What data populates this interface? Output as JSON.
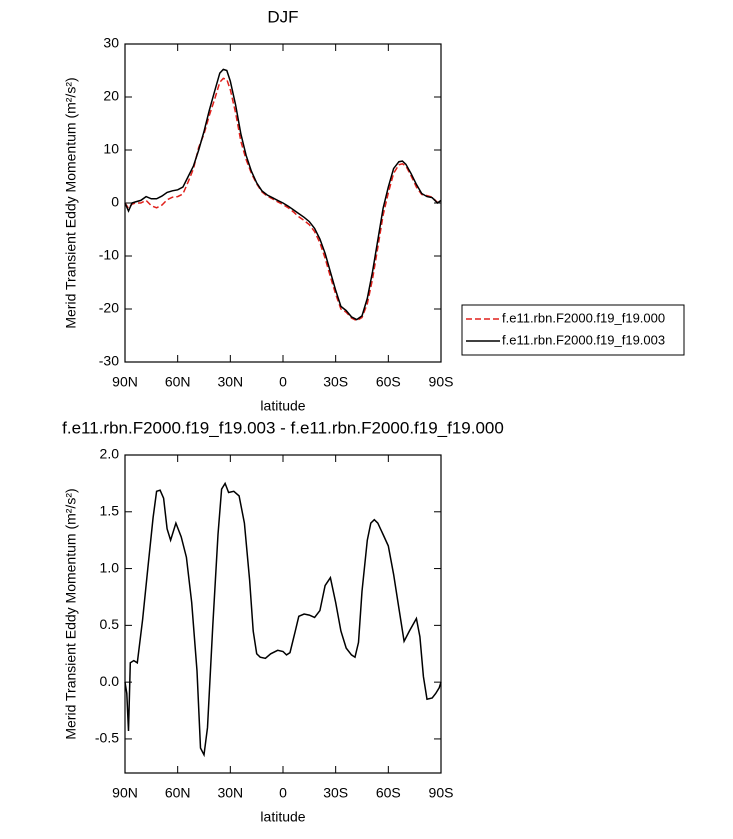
{
  "chart_data": [
    {
      "type": "line",
      "title": "DJF",
      "x_label": "latitude",
      "y_label": "Merid Transient Eddy Momentum (m²/s²)",
      "x": [
        90,
        88,
        86,
        84,
        81,
        78,
        75,
        72,
        69,
        66,
        63,
        60,
        57,
        54,
        51,
        48,
        45,
        42,
        39,
        36,
        34,
        32,
        30,
        27,
        24,
        21,
        18,
        15,
        12,
        9,
        6,
        3,
        0,
        -3,
        -6,
        -9,
        -12,
        -15,
        -18,
        -21,
        -24,
        -27,
        -30,
        -33,
        -36,
        -39,
        -42,
        -45,
        -48,
        -51,
        -54,
        -57,
        -60,
        -63,
        -66,
        -68,
        -70,
        -73,
        -76,
        -79,
        -82,
        -85,
        -88,
        -90
      ],
      "series": [
        {
          "name": "f.e11.rbn.F2000.f19_f19.000",
          "color": "#e0201b",
          "line_style": "dashed",
          "values": [
            0,
            -1,
            -0.2,
            0,
            0,
            0.5,
            -0.5,
            -0.9,
            -0.4,
            0.6,
            1.1,
            1.2,
            1.7,
            4,
            6.5,
            10.5,
            13,
            16.5,
            19.5,
            22.8,
            23.5,
            23.3,
            21.4,
            17,
            11.6,
            8.2,
            5.6,
            3.6,
            2.1,
            1.3,
            0.8,
            0.2,
            -0.3,
            -0.9,
            -1.7,
            -2.6,
            -3.3,
            -4.1,
            -5.4,
            -7.5,
            -10.4,
            -13.9,
            -17.2,
            -20,
            -20.6,
            -21.7,
            -22.2,
            -21.6,
            -19,
            -14.4,
            -8.4,
            -2.3,
            1.9,
            5.6,
            7.2,
            7.4,
            7,
            5.1,
            3,
            1.6,
            1.4,
            1.1,
            0.1,
            0.5
          ]
        },
        {
          "name": "f.e11.rbn.F2000.f19_f19.003",
          "color": "#000000",
          "line_style": "solid",
          "values": [
            0,
            -1.5,
            0,
            0.2,
            0.5,
            1.2,
            0.8,
            0.8,
            1.3,
            2,
            2.3,
            2.5,
            3,
            5,
            7,
            10,
            13.5,
            17.5,
            21,
            24.5,
            25.2,
            25,
            23,
            18.5,
            13,
            9,
            6,
            3.8,
            2.3,
            1.5,
            1,
            0.5,
            0,
            -0.6,
            -1.3,
            -2,
            -2.7,
            -3.5,
            -4.8,
            -6.8,
            -9.5,
            -13,
            -16.5,
            -19.5,
            -20.3,
            -21.5,
            -22,
            -21.3,
            -18,
            -13,
            -7,
            -1,
            3,
            6.5,
            7.8,
            7.9,
            7.3,
            5.5,
            3.5,
            1.8,
            1.2,
            1,
            0,
            0.5
          ]
        }
      ],
      "xlim": [
        90,
        -90
      ],
      "xticks": [
        {
          "value": 90,
          "label": "90N"
        },
        {
          "value": 60,
          "label": "60N"
        },
        {
          "value": 30,
          "label": "30N"
        },
        0,
        {
          "value": -30,
          "label": "30S"
        },
        {
          "value": -60,
          "label": "60S"
        },
        {
          "value": -90,
          "label": "90S"
        }
      ],
      "ylim": [
        -30,
        30
      ],
      "yticks": [
        -30,
        -20,
        -10,
        0,
        10,
        20,
        30
      ],
      "legend": "right"
    },
    {
      "type": "line",
      "title": "f.e11.rbn.F2000.f19_f19.003 - f.e11.rbn.F2000.f19_f19.000",
      "x_label": "latitude",
      "y_label": "Merid Transient Eddy Momentum (m²/s²)",
      "x": [
        90,
        89,
        88,
        87,
        85,
        83,
        80,
        77,
        74,
        72,
        70,
        68,
        66,
        64,
        61,
        58,
        55,
        52,
        49,
        47,
        45,
        43,
        40,
        37,
        35,
        33,
        31,
        28,
        25,
        22,
        19,
        17,
        15,
        13,
        10,
        7,
        3,
        0,
        -2,
        -4,
        -7,
        -9,
        -12,
        -15,
        -18,
        -21,
        -24,
        -27,
        -30,
        -33,
        -36,
        -39,
        -41,
        -43,
        -45,
        -48,
        -50,
        -52,
        -54,
        -57,
        -60,
        -63,
        -66,
        -69,
        -72,
        -76,
        -78,
        -80,
        -82,
        -85,
        -87,
        -89,
        -90
      ],
      "series": [
        {
          "color": "#000000",
          "line_style": "solid",
          "values": [
            0,
            -0.1,
            -0.43,
            0.17,
            0.19,
            0.17,
            0.55,
            1.0,
            1.45,
            1.68,
            1.69,
            1.62,
            1.35,
            1.25,
            1.4,
            1.28,
            1.1,
            0.7,
            0.1,
            -0.58,
            -0.64,
            -0.4,
            0.5,
            1.3,
            1.7,
            1.75,
            1.67,
            1.68,
            1.64,
            1.4,
            0.9,
            0.45,
            0.25,
            0.22,
            0.21,
            0.25,
            0.28,
            0.27,
            0.24,
            0.26,
            0.45,
            0.58,
            0.6,
            0.59,
            0.57,
            0.63,
            0.85,
            0.92,
            0.7,
            0.45,
            0.3,
            0.24,
            0.22,
            0.35,
            0.8,
            1.25,
            1.4,
            1.43,
            1.4,
            1.3,
            1.2,
            0.95,
            0.65,
            0.36,
            0.45,
            0.56,
            0.4,
            0.05,
            -0.15,
            -0.14,
            -0.1,
            -0.05,
            0
          ]
        }
      ],
      "xlim": [
        90,
        -90
      ],
      "xticks": [
        {
          "value": 90,
          "label": "90N"
        },
        {
          "value": 60,
          "label": "60N"
        },
        {
          "value": 30,
          "label": "30N"
        },
        0,
        {
          "value": -30,
          "label": "30S"
        },
        {
          "value": -60,
          "label": "60S"
        },
        {
          "value": -90,
          "label": "90S"
        }
      ],
      "ylim": [
        -0.8,
        2.0
      ],
      "yticks": [
        {
          "value": -0.5,
          "label": "-0.5"
        },
        {
          "value": 0,
          "label": "0.0"
        },
        0.5,
        {
          "value": 1,
          "label": "1.0"
        },
        1.5,
        {
          "value": 2,
          "label": "2.0"
        }
      ]
    }
  ]
}
